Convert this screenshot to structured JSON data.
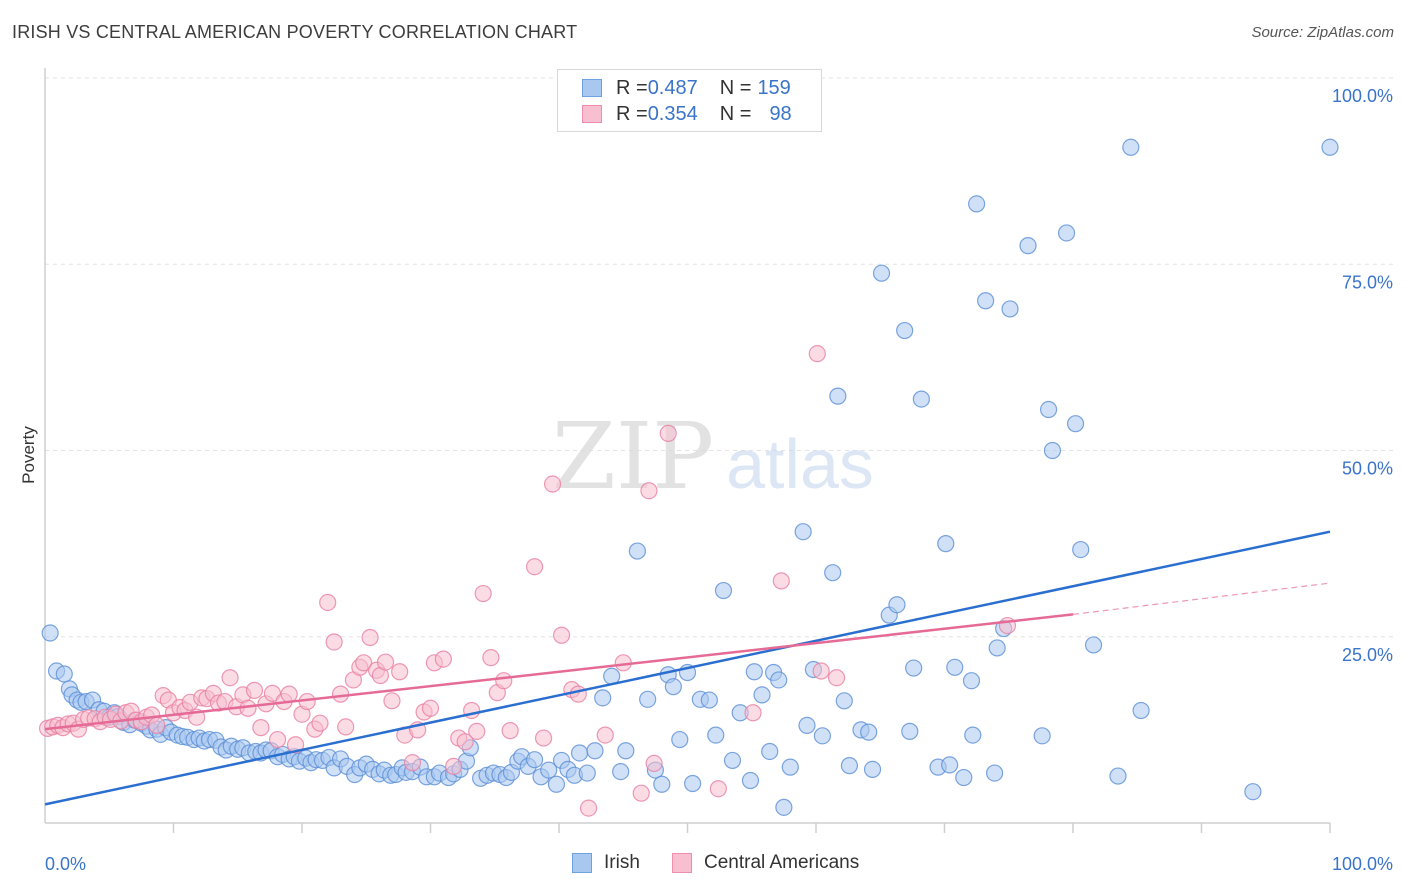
{
  "title": "IRISH VS CENTRAL AMERICAN POVERTY CORRELATION CHART",
  "source": "Source: ZipAtlas.com",
  "watermark": {
    "zip": "ZIP",
    "atlas": "atlas"
  },
  "legend": {
    "rows": [
      {
        "r_label": "R = ",
        "r_value": "0.487",
        "n_label": "N = ",
        "n_value": "159",
        "color": "#a9c8f0",
        "edge": "#6fa0e0"
      },
      {
        "r_label": "R = ",
        "r_value": "0.354",
        "n_label": "N = ",
        "n_value": "98",
        "color": "#f7bfd0",
        "edge": "#ee8fae"
      }
    ]
  },
  "bottom_legend": [
    {
      "label": "Irish",
      "color": "#a9c8f0",
      "edge": "#6fa0e0"
    },
    {
      "label": "Central Americans",
      "color": "#f7bfd0",
      "edge": "#ee8fae"
    }
  ],
  "chart_data": {
    "type": "scatter",
    "xlabel": "",
    "ylabel": "Poverty",
    "xlim": [
      0,
      100
    ],
    "ylim": [
      0,
      100
    ],
    "x_tick_labels": [
      "0.0%",
      "100.0%"
    ],
    "y_tick_labels": [
      "100.0%",
      "75.0%",
      "50.0%",
      "25.0%"
    ],
    "y_tick_values": [
      100,
      75,
      50,
      25
    ],
    "grid": true,
    "legend_position": "top-center",
    "series": [
      {
        "name": "Irish",
        "color": "#a9c8f0",
        "edge": "#5b8fd6",
        "trend": {
          "x": [
            0,
            100
          ],
          "y": [
            2.5,
            39.1
          ],
          "color": "#2a6fd0"
        },
        "points": [
          [
            0.4,
            25.5
          ],
          [
            0.9,
            20.4
          ],
          [
            1.5,
            20
          ],
          [
            1.9,
            18
          ],
          [
            2.1,
            17.2
          ],
          [
            2.5,
            16.5
          ],
          [
            2.8,
            16.2
          ],
          [
            3.2,
            16.3
          ],
          [
            3.7,
            16.5
          ],
          [
            4.2,
            15.2
          ],
          [
            4.6,
            15
          ],
          [
            5,
            14.2
          ],
          [
            5.4,
            14.8
          ],
          [
            5.7,
            14.3
          ],
          [
            6.1,
            13.5
          ],
          [
            6.6,
            13.2
          ],
          [
            7,
            13.8
          ],
          [
            7.5,
            13.4
          ],
          [
            7.9,
            13
          ],
          [
            8.2,
            12.5
          ],
          [
            8.7,
            12.6
          ],
          [
            9,
            11.9
          ],
          [
            9.4,
            12.8
          ],
          [
            9.8,
            12.2
          ],
          [
            10.3,
            11.8
          ],
          [
            10.7,
            11.6
          ],
          [
            11.1,
            11.5
          ],
          [
            11.6,
            11.2
          ],
          [
            12,
            11.4
          ],
          [
            12.4,
            11
          ],
          [
            12.8,
            11.2
          ],
          [
            13.3,
            11.1
          ],
          [
            13.7,
            10.2
          ],
          [
            14.1,
            9.8
          ],
          [
            14.5,
            10.3
          ],
          [
            15,
            9.9
          ],
          [
            15.4,
            10.1
          ],
          [
            15.9,
            9.4
          ],
          [
            16.4,
            9.6
          ],
          [
            16.8,
            9.4
          ],
          [
            17.2,
            9.8
          ],
          [
            17.6,
            9.7
          ],
          [
            18.1,
            8.9
          ],
          [
            18.5,
            9.2
          ],
          [
            19,
            8.6
          ],
          [
            19.4,
            8.9
          ],
          [
            19.8,
            8.3
          ],
          [
            20.3,
            8.7
          ],
          [
            20.7,
            8.1
          ],
          [
            21.1,
            8.5
          ],
          [
            21.6,
            8.4
          ],
          [
            22.1,
            8.8
          ],
          [
            22.5,
            7.4
          ],
          [
            23,
            8.6
          ],
          [
            23.5,
            7.6
          ],
          [
            24.1,
            6.5
          ],
          [
            24.5,
            7.4
          ],
          [
            25,
            7.9
          ],
          [
            25.5,
            7.2
          ],
          [
            26,
            6.6
          ],
          [
            26.4,
            7.1
          ],
          [
            26.9,
            6.4
          ],
          [
            27.3,
            6.5
          ],
          [
            27.8,
            7.4
          ],
          [
            28.1,
            6.8
          ],
          [
            28.6,
            6.9
          ],
          [
            29.2,
            7.5
          ],
          [
            29.7,
            6.2
          ],
          [
            30.3,
            6.2
          ],
          [
            30.7,
            6.7
          ],
          [
            31.4,
            6.1
          ],
          [
            31.8,
            6.6
          ],
          [
            32.3,
            7.2
          ],
          [
            32.8,
            8.3
          ],
          [
            33.1,
            10.1
          ],
          [
            33.9,
            6
          ],
          [
            34.4,
            6.4
          ],
          [
            34.9,
            6.7
          ],
          [
            35.4,
            6.5
          ],
          [
            35.9,
            6.1
          ],
          [
            36.3,
            6.8
          ],
          [
            36.8,
            8.3
          ],
          [
            37.1,
            8.9
          ],
          [
            37.6,
            7.6
          ],
          [
            38.1,
            8.5
          ],
          [
            38.6,
            6.2
          ],
          [
            39.2,
            7.1
          ],
          [
            39.8,
            5.2
          ],
          [
            40.2,
            8.4
          ],
          [
            40.7,
            7.2
          ],
          [
            41.2,
            6.4
          ],
          [
            41.6,
            9.4
          ],
          [
            42.2,
            6.7
          ],
          [
            42.8,
            9.7
          ],
          [
            43.4,
            16.8
          ],
          [
            44.1,
            19.7
          ],
          [
            44.8,
            6.9
          ],
          [
            45.2,
            9.7
          ],
          [
            46.1,
            36.5
          ],
          [
            46.9,
            16.6
          ],
          [
            47.5,
            7.1
          ],
          [
            48,
            5.2
          ],
          [
            48.5,
            19.9
          ],
          [
            48.9,
            18.3
          ],
          [
            49.4,
            11.2
          ],
          [
            50,
            20.2
          ],
          [
            50.4,
            5.3
          ],
          [
            51,
            16.6
          ],
          [
            51.7,
            16.5
          ],
          [
            52.2,
            11.8
          ],
          [
            52.8,
            31.2
          ],
          [
            53.5,
            8.4
          ],
          [
            54.1,
            14.8
          ],
          [
            54.9,
            5.7
          ],
          [
            55.2,
            20.3
          ],
          [
            55.8,
            17.2
          ],
          [
            56.4,
            9.6
          ],
          [
            56.7,
            20.2
          ],
          [
            57.1,
            19.2
          ],
          [
            57.5,
            2.1
          ],
          [
            58,
            7.5
          ],
          [
            59,
            39.1
          ],
          [
            59.3,
            13.1
          ],
          [
            59.8,
            20.6
          ],
          [
            60.5,
            11.7
          ],
          [
            61.3,
            33.6
          ],
          [
            61.7,
            57.3
          ],
          [
            62.2,
            16.4
          ],
          [
            62.6,
            7.7
          ],
          [
            63.5,
            12.5
          ],
          [
            64.1,
            12.2
          ],
          [
            64.4,
            7.2
          ],
          [
            65.1,
            73.8
          ],
          [
            65.7,
            27.9
          ],
          [
            66.3,
            29.3
          ],
          [
            66.9,
            66.1
          ],
          [
            67.3,
            12.3
          ],
          [
            67.6,
            20.8
          ],
          [
            68.2,
            56.9
          ],
          [
            69.5,
            7.5
          ],
          [
            70.1,
            37.5
          ],
          [
            70.4,
            7.8
          ],
          [
            70.8,
            20.9
          ],
          [
            71.5,
            6.1
          ],
          [
            72.1,
            19.1
          ],
          [
            72.2,
            11.8
          ],
          [
            72.5,
            83.1
          ],
          [
            73.2,
            70.1
          ],
          [
            73.9,
            6.7
          ],
          [
            74.1,
            23.5
          ],
          [
            74.6,
            26.1
          ],
          [
            75.1,
            69
          ],
          [
            76.5,
            77.5
          ],
          [
            77.6,
            11.7
          ],
          [
            78.1,
            55.5
          ],
          [
            78.4,
            50
          ],
          [
            79.5,
            79.2
          ],
          [
            80.2,
            53.6
          ],
          [
            80.6,
            36.7
          ],
          [
            81.6,
            23.9
          ],
          [
            83.5,
            6.3
          ],
          [
            84.5,
            90.7
          ],
          [
            85.3,
            15.1
          ],
          [
            94,
            4.2
          ],
          [
            100,
            90.7
          ]
        ]
      },
      {
        "name": "Central Americans",
        "color": "#f7bfd0",
        "edge": "#e87fa3",
        "trend": {
          "x": [
            0,
            80
          ],
          "y": [
            12.6,
            28
          ],
          "color": "#e56b96"
        },
        "trend_ext": {
          "x": [
            80,
            100
          ],
          "y": [
            28,
            32.2
          ]
        },
        "points": [
          [
            0.2,
            12.7
          ],
          [
            0.6,
            12.9
          ],
          [
            1,
            13.1
          ],
          [
            1.4,
            12.8
          ],
          [
            1.8,
            13.3
          ],
          [
            2.2,
            13.4
          ],
          [
            2.6,
            12.6
          ],
          [
            3,
            13.9
          ],
          [
            3.4,
            14.1
          ],
          [
            3.9,
            14
          ],
          [
            4.3,
            13.6
          ],
          [
            4.7,
            14.2
          ],
          [
            5.1,
            13.9
          ],
          [
            5.5,
            14.6
          ],
          [
            5.9,
            13.7
          ],
          [
            6.3,
            14.8
          ],
          [
            6.7,
            15
          ],
          [
            7.1,
            13.8
          ],
          [
            7.5,
            13.6
          ],
          [
            7.9,
            14.2
          ],
          [
            8.3,
            14.5
          ],
          [
            8.7,
            13.1
          ],
          [
            9.2,
            17.1
          ],
          [
            9.6,
            16.5
          ],
          [
            10,
            14.8
          ],
          [
            10.5,
            15.5
          ],
          [
            10.9,
            15.1
          ],
          [
            11.3,
            16.2
          ],
          [
            11.8,
            14.2
          ],
          [
            12.2,
            16.8
          ],
          [
            12.6,
            16.7
          ],
          [
            13.1,
            17.4
          ],
          [
            13.5,
            16.1
          ],
          [
            14,
            16.3
          ],
          [
            14.4,
            19.5
          ],
          [
            14.9,
            15.6
          ],
          [
            15.4,
            17.2
          ],
          [
            15.8,
            15.4
          ],
          [
            16.3,
            17.8
          ],
          [
            16.8,
            12.8
          ],
          [
            17.2,
            16
          ],
          [
            17.7,
            17.4
          ],
          [
            18.1,
            11.2
          ],
          [
            18.6,
            16.3
          ],
          [
            19,
            17.3
          ],
          [
            19.5,
            10.5
          ],
          [
            20,
            14.6
          ],
          [
            20.4,
            16.3
          ],
          [
            21,
            12.6
          ],
          [
            21.4,
            13.4
          ],
          [
            22,
            29.6
          ],
          [
            22.5,
            24.3
          ],
          [
            23,
            17.3
          ],
          [
            23.4,
            12.9
          ],
          [
            24,
            19.2
          ],
          [
            24.5,
            20.9
          ],
          [
            24.8,
            21.5
          ],
          [
            25.3,
            24.9
          ],
          [
            25.8,
            20.5
          ],
          [
            26.1,
            19.8
          ],
          [
            26.5,
            21.6
          ],
          [
            27,
            16.4
          ],
          [
            27.6,
            20.3
          ],
          [
            28,
            11.8
          ],
          [
            28.6,
            8.1
          ],
          [
            29,
            12.5
          ],
          [
            29.5,
            14.9
          ],
          [
            30,
            15.4
          ],
          [
            30.3,
            21.5
          ],
          [
            31,
            22
          ],
          [
            31.8,
            7.6
          ],
          [
            32.2,
            11.4
          ],
          [
            32.7,
            10.9
          ],
          [
            33.2,
            15.1
          ],
          [
            33.6,
            12.3
          ],
          [
            34.1,
            30.8
          ],
          [
            34.7,
            22.2
          ],
          [
            35.2,
            17.5
          ],
          [
            35.7,
            19.1
          ],
          [
            36.2,
            12.4
          ],
          [
            38.1,
            34.4
          ],
          [
            38.8,
            11.4
          ],
          [
            39.5,
            45.5
          ],
          [
            40.2,
            25.2
          ],
          [
            41,
            17.9
          ],
          [
            41.5,
            17.3
          ],
          [
            42.3,
            2
          ],
          [
            43.6,
            11.8
          ],
          [
            45,
            21.5
          ],
          [
            46.4,
            4
          ],
          [
            47,
            44.6
          ],
          [
            47.4,
            8
          ],
          [
            48.5,
            52.3
          ],
          [
            52.4,
            4.6
          ],
          [
            55.1,
            14.8
          ],
          [
            57.3,
            32.5
          ],
          [
            60.1,
            63
          ],
          [
            60.4,
            20.4
          ],
          [
            61.6,
            19.5
          ],
          [
            74.9,
            26.5
          ]
        ]
      }
    ]
  }
}
